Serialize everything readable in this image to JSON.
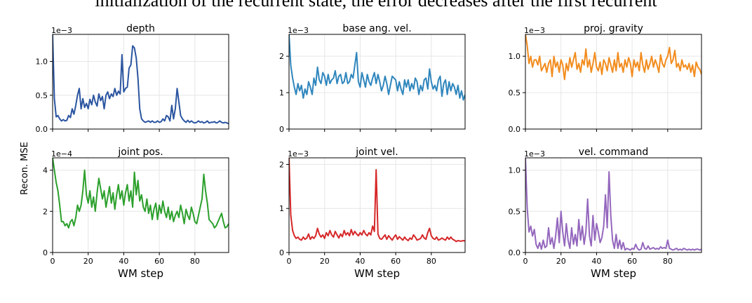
{
  "caption_fragment": "initialization of the recurrent state, the error decreases after the first recurrent",
  "shared": {
    "ylabel": "Recon. MSE",
    "xlabel": "WM step",
    "xlim": [
      0,
      99
    ],
    "xticks": [
      0,
      20,
      40,
      60,
      80
    ]
  },
  "chart_data": [
    {
      "type": "line",
      "title": "depth",
      "scale_label": "1e−3",
      "color": "#2b55a0",
      "ylim": [
        0,
        1.4
      ],
      "yticks": [
        0.0,
        0.5,
        1.0
      ],
      "ytick_labels": [
        "0.0",
        "0.5",
        "1.0"
      ],
      "xlabel": "",
      "show_xticklabels": false,
      "x": [
        0,
        1,
        2,
        3,
        4,
        5,
        6,
        7,
        8,
        9,
        10,
        11,
        12,
        13,
        14,
        15,
        16,
        17,
        18,
        19,
        20,
        21,
        22,
        23,
        24,
        25,
        26,
        27,
        28,
        29,
        30,
        31,
        32,
        33,
        34,
        35,
        36,
        37,
        38,
        39,
        40,
        41,
        42,
        43,
        44,
        45,
        46,
        47,
        48,
        49,
        50,
        51,
        52,
        53,
        54,
        55,
        56,
        57,
        58,
        59,
        60,
        61,
        62,
        63,
        64,
        65,
        66,
        67,
        68,
        69,
        70,
        71,
        72,
        73,
        74,
        75,
        76,
        77,
        78,
        79,
        80,
        81,
        82,
        83,
        84,
        85,
        86,
        87,
        88,
        89,
        90,
        91,
        92,
        93,
        94,
        95,
        96,
        97,
        98,
        99
      ],
      "values": [
        1.4,
        0.45,
        0.18,
        0.2,
        0.15,
        0.12,
        0.14,
        0.12,
        0.13,
        0.2,
        0.17,
        0.3,
        0.22,
        0.35,
        0.5,
        0.6,
        0.3,
        0.45,
        0.32,
        0.38,
        0.3,
        0.44,
        0.36,
        0.5,
        0.4,
        0.34,
        0.52,
        0.42,
        0.48,
        0.3,
        0.5,
        0.55,
        0.45,
        0.52,
        0.48,
        0.6,
        0.5,
        0.56,
        0.52,
        1.1,
        0.55,
        0.6,
        0.62,
        0.9,
        0.95,
        1.23,
        1.2,
        1.05,
        0.75,
        0.3,
        0.15,
        0.12,
        0.1,
        0.11,
        0.12,
        0.1,
        0.12,
        0.1,
        0.1,
        0.12,
        0.1,
        0.11,
        0.15,
        0.12,
        0.2,
        0.18,
        0.12,
        0.35,
        0.15,
        0.3,
        0.6,
        0.4,
        0.2,
        0.15,
        0.12,
        0.1,
        0.13,
        0.1,
        0.12,
        0.1,
        0.09,
        0.1,
        0.12,
        0.1,
        0.11,
        0.09,
        0.1,
        0.12,
        0.09,
        0.1,
        0.1,
        0.11,
        0.09,
        0.1,
        0.12,
        0.1,
        0.09,
        0.1,
        0.09,
        0.08
      ]
    },
    {
      "type": "line",
      "title": "base ang. vel.",
      "scale_label": "1e−3",
      "color": "#2f86bd",
      "ylim": [
        0,
        2.6
      ],
      "yticks": [
        0,
        1,
        2
      ],
      "ytick_labels": [
        "0",
        "1",
        "2"
      ],
      "xlabel": "",
      "show_xticklabels": false,
      "x": [
        0,
        1,
        2,
        3,
        4,
        5,
        6,
        7,
        8,
        9,
        10,
        11,
        12,
        13,
        14,
        15,
        16,
        17,
        18,
        19,
        20,
        21,
        22,
        23,
        24,
        25,
        26,
        27,
        28,
        29,
        30,
        31,
        32,
        33,
        34,
        35,
        36,
        37,
        38,
        39,
        40,
        41,
        42,
        43,
        44,
        45,
        46,
        47,
        48,
        49,
        50,
        51,
        52,
        53,
        54,
        55,
        56,
        57,
        58,
        59,
        60,
        61,
        62,
        63,
        64,
        65,
        66,
        67,
        68,
        69,
        70,
        71,
        72,
        73,
        74,
        75,
        76,
        77,
        78,
        79,
        80,
        81,
        82,
        83,
        84,
        85,
        86,
        87,
        88,
        89,
        90,
        91,
        92,
        93,
        94,
        95,
        96,
        97,
        98,
        99
      ],
      "values": [
        2.6,
        1.75,
        1.4,
        1.15,
        0.95,
        1.25,
        1.05,
        1.2,
        0.85,
        1.1,
        0.95,
        1.3,
        1.15,
        0.95,
        1.4,
        1.2,
        1.7,
        1.35,
        1.25,
        1.55,
        1.45,
        1.2,
        1.5,
        1.25,
        1.35,
        1.4,
        1.6,
        1.25,
        1.45,
        1.5,
        1.25,
        1.3,
        1.55,
        1.25,
        1.3,
        1.5,
        1.4,
        1.75,
        2.1,
        1.3,
        1.15,
        1.55,
        1.35,
        1.15,
        1.5,
        1.3,
        1.2,
        1.4,
        1.55,
        1.25,
        1.5,
        1.3,
        1.05,
        1.2,
        1.45,
        1.25,
        0.95,
        1.2,
        1.45,
        1.4,
        1.35,
        1.05,
        1.3,
        1.1,
        0.95,
        1.35,
        1.15,
        1.35,
        1.05,
        1.25,
        1.1,
        1.4,
        1.3,
        0.95,
        1.2,
        1.05,
        1.35,
        1.4,
        1.1,
        1.65,
        1.3,
        1.1,
        1.2,
        1.05,
        1.35,
        1.45,
        0.9,
        1.25,
        1.35,
        0.95,
        1.3,
        1.05,
        1.25,
        1.15,
        0.95,
        1.2,
        0.85,
        1.05,
        0.8,
        0.95
      ]
    },
    {
      "type": "line",
      "title": "proj. gravity",
      "scale_label": "1e−3",
      "color": "#f28c1e",
      "ylim": [
        0,
        1.3
      ],
      "yticks": [
        0.0,
        0.5,
        1.0
      ],
      "ytick_labels": [
        "0.0",
        "0.5",
        "1.0"
      ],
      "xlabel": "",
      "show_xticklabels": false,
      "x": [
        0,
        1,
        2,
        3,
        4,
        5,
        6,
        7,
        8,
        9,
        10,
        11,
        12,
        13,
        14,
        15,
        16,
        17,
        18,
        19,
        20,
        21,
        22,
        23,
        24,
        25,
        26,
        27,
        28,
        29,
        30,
        31,
        32,
        33,
        34,
        35,
        36,
        37,
        38,
        39,
        40,
        41,
        42,
        43,
        44,
        45,
        46,
        47,
        48,
        49,
        50,
        51,
        52,
        53,
        54,
        55,
        56,
        57,
        58,
        59,
        60,
        61,
        62,
        63,
        64,
        65,
        66,
        67,
        68,
        69,
        70,
        71,
        72,
        73,
        74,
        75,
        76,
        77,
        78,
        79,
        80,
        81,
        82,
        83,
        84,
        85,
        86,
        87,
        88,
        89,
        90,
        91,
        92,
        93,
        94,
        95,
        96,
        97,
        98,
        99
      ],
      "values": [
        1.3,
        1.15,
        0.9,
        1.0,
        0.85,
        0.95,
        0.95,
        0.88,
        1.0,
        0.8,
        0.85,
        0.9,
        0.78,
        0.9,
        0.95,
        0.72,
        1.0,
        0.85,
        0.92,
        0.78,
        0.95,
        0.88,
        0.68,
        0.9,
        0.8,
        0.98,
        0.85,
        0.95,
        1.05,
        0.82,
        0.9,
        0.78,
        0.95,
        0.88,
        1.1,
        0.85,
        0.95,
        0.78,
        0.9,
        1.05,
        0.85,
        0.8,
        0.92,
        0.75,
        0.95,
        0.9,
        0.8,
        0.98,
        0.88,
        0.78,
        0.95,
        0.8,
        1.05,
        0.85,
        0.9,
        0.78,
        0.95,
        0.85,
        0.98,
        0.9,
        0.72,
        0.95,
        0.85,
        0.92,
        0.8,
        1.05,
        0.88,
        0.78,
        0.95,
        0.82,
        0.9,
        1.0,
        0.85,
        0.95,
        0.88,
        0.78,
        1.02,
        0.9,
        0.85,
        0.95,
        1.0,
        1.12,
        0.9,
        0.95,
        1.08,
        0.85,
        0.9,
        0.8,
        0.95,
        0.85,
        0.88,
        0.82,
        0.9,
        0.78,
        0.88,
        0.72,
        0.92,
        0.85,
        0.82,
        0.75
      ]
    },
    {
      "type": "line",
      "title": "joint pos.",
      "scale_label": "1e−4",
      "color": "#2ca02c",
      "ylim": [
        0,
        4.6
      ],
      "yticks": [
        0,
        2,
        4
      ],
      "ytick_labels": [
        "0",
        "2",
        "4"
      ],
      "xlabel": "WM step",
      "show_xticklabels": true,
      "x": [
        0,
        1,
        2,
        3,
        4,
        5,
        6,
        7,
        8,
        9,
        10,
        11,
        12,
        13,
        14,
        15,
        16,
        17,
        18,
        19,
        20,
        21,
        22,
        23,
        24,
        25,
        26,
        27,
        28,
        29,
        30,
        31,
        32,
        33,
        34,
        35,
        36,
        37,
        38,
        39,
        40,
        41,
        42,
        43,
        44,
        45,
        46,
        47,
        48,
        49,
        50,
        51,
        52,
        53,
        54,
        55,
        56,
        57,
        58,
        59,
        60,
        61,
        62,
        63,
        64,
        65,
        66,
        67,
        68,
        69,
        70,
        71,
        72,
        73,
        74,
        75,
        76,
        77,
        78,
        79,
        80,
        81,
        82,
        83,
        84,
        85,
        86,
        87,
        88,
        89,
        90,
        91,
        92,
        93,
        94,
        95,
        96,
        97,
        98,
        99
      ],
      "values": [
        4.6,
        4.0,
        3.4,
        3.0,
        2.3,
        1.5,
        1.5,
        1.3,
        1.4,
        1.2,
        1.5,
        1.6,
        1.3,
        1.7,
        2.3,
        2.0,
        2.3,
        3.0,
        4.0,
        2.8,
        2.4,
        3.0,
        2.2,
        2.7,
        2.0,
        2.9,
        3.6,
        3.1,
        2.6,
        3.0,
        2.2,
        2.7,
        3.2,
        2.4,
        2.9,
        2.1,
        2.8,
        3.3,
        2.6,
        3.0,
        2.3,
        2.9,
        3.3,
        2.5,
        3.0,
        2.2,
        3.9,
        2.8,
        3.5,
        2.5,
        2.8,
        2.2,
        2.0,
        2.6,
        1.9,
        2.3,
        1.6,
        2.1,
        2.4,
        1.6,
        2.3,
        1.9,
        2.5,
        2.0,
        1.7,
        2.2,
        1.6,
        2.0,
        1.5,
        1.8,
        2.0,
        1.7,
        2.3,
        1.9,
        1.4,
        2.1,
        1.8,
        1.6,
        2.2,
        1.9,
        1.5,
        1.4,
        1.8,
        2.2,
        2.6,
        3.8,
        3.0,
        2.4,
        1.6,
        1.5,
        1.4,
        1.2,
        1.3,
        1.5,
        1.7,
        1.9,
        1.5,
        1.2,
        1.25,
        1.4
      ]
    },
    {
      "type": "line",
      "title": "joint vel.",
      "scale_label": "1e−3",
      "color": "#d62728",
      "ylim": [
        0,
        2.15
      ],
      "yticks": [
        0,
        1,
        2
      ],
      "ytick_labels": [
        "0",
        "1",
        "2"
      ],
      "xlabel": "WM step",
      "show_xticklabels": true,
      "x": [
        0,
        1,
        2,
        3,
        4,
        5,
        6,
        7,
        8,
        9,
        10,
        11,
        12,
        13,
        14,
        15,
        16,
        17,
        18,
        19,
        20,
        21,
        22,
        23,
        24,
        25,
        26,
        27,
        28,
        29,
        30,
        31,
        32,
        33,
        34,
        35,
        36,
        37,
        38,
        39,
        40,
        41,
        42,
        43,
        44,
        45,
        46,
        47,
        48,
        49,
        50,
        51,
        52,
        53,
        54,
        55,
        56,
        57,
        58,
        59,
        60,
        61,
        62,
        63,
        64,
        65,
        66,
        67,
        68,
        69,
        70,
        71,
        72,
        73,
        74,
        75,
        76,
        77,
        78,
        79,
        80,
        81,
        82,
        83,
        84,
        85,
        86,
        87,
        88,
        89,
        90,
        91,
        92,
        93,
        94,
        95,
        96,
        97,
        98,
        99
      ],
      "values": [
        2.15,
        0.85,
        0.5,
        0.38,
        0.32,
        0.35,
        0.3,
        0.28,
        0.35,
        0.3,
        0.33,
        0.42,
        0.3,
        0.36,
        0.32,
        0.38,
        0.55,
        0.42,
        0.35,
        0.4,
        0.32,
        0.45,
        0.38,
        0.5,
        0.4,
        0.35,
        0.48,
        0.4,
        0.33,
        0.42,
        0.36,
        0.5,
        0.4,
        0.45,
        0.38,
        0.52,
        0.4,
        0.48,
        0.42,
        0.38,
        0.45,
        0.4,
        0.5,
        0.42,
        0.38,
        0.45,
        0.4,
        0.6,
        0.48,
        1.88,
        0.42,
        0.32,
        0.3,
        0.35,
        0.4,
        0.3,
        0.38,
        0.33,
        0.28,
        0.35,
        0.4,
        0.3,
        0.36,
        0.32,
        0.28,
        0.35,
        0.3,
        0.27,
        0.33,
        0.3,
        0.4,
        0.35,
        0.28,
        0.3,
        0.32,
        0.4,
        0.33,
        0.3,
        0.45,
        0.55,
        0.38,
        0.32,
        0.3,
        0.35,
        0.28,
        0.3,
        0.33,
        0.3,
        0.28,
        0.35,
        0.3,
        0.35,
        0.3,
        0.28,
        0.25,
        0.27,
        0.26,
        0.26,
        0.27,
        0.26
      ]
    },
    {
      "type": "line",
      "title": "vel. command",
      "scale_label": "1e−3",
      "color": "#9467bd",
      "ylim": [
        0,
        1.15
      ],
      "yticks": [
        0.0,
        0.5,
        1.0
      ],
      "ytick_labels": [
        "0.0",
        "0.5",
        "1.0"
      ],
      "xlabel": "WM step",
      "show_xticklabels": true,
      "x": [
        0,
        1,
        2,
        3,
        4,
        5,
        6,
        7,
        8,
        9,
        10,
        11,
        12,
        13,
        14,
        15,
        16,
        17,
        18,
        19,
        20,
        21,
        22,
        23,
        24,
        25,
        26,
        27,
        28,
        29,
        30,
        31,
        32,
        33,
        34,
        35,
        36,
        37,
        38,
        39,
        40,
        41,
        42,
        43,
        44,
        45,
        46,
        47,
        48,
        49,
        50,
        51,
        52,
        53,
        54,
        55,
        56,
        57,
        58,
        59,
        60,
        61,
        62,
        63,
        64,
        65,
        66,
        67,
        68,
        69,
        70,
        71,
        72,
        73,
        74,
        75,
        76,
        77,
        78,
        79,
        80,
        81,
        82,
        83,
        84,
        85,
        86,
        87,
        88,
        89,
        90,
        91,
        92,
        93,
        94,
        95,
        96,
        97,
        98,
        99
      ],
      "values": [
        1.15,
        0.55,
        0.25,
        0.32,
        0.2,
        0.28,
        0.1,
        0.05,
        0.12,
        0.04,
        0.15,
        0.06,
        0.08,
        0.3,
        0.1,
        0.18,
        0.05,
        0.2,
        0.42,
        0.12,
        0.5,
        0.25,
        0.08,
        0.35,
        0.15,
        0.05,
        0.3,
        0.1,
        0.22,
        0.08,
        0.4,
        0.15,
        0.32,
        0.1,
        0.25,
        0.65,
        0.2,
        0.08,
        0.45,
        0.15,
        0.35,
        0.25,
        0.12,
        0.18,
        0.32,
        0.7,
        0.3,
        0.98,
        0.45,
        0.15,
        0.05,
        0.22,
        0.05,
        0.15,
        0.04,
        0.12,
        0.03,
        0.05,
        0.04,
        0.03,
        0.05,
        0.04,
        0.1,
        0.05,
        0.03,
        0.04,
        0.12,
        0.05,
        0.04,
        0.08,
        0.04,
        0.05,
        0.06,
        0.04,
        0.05,
        0.04,
        0.07,
        0.05,
        0.06,
        0.05,
        0.15,
        0.05,
        0.04,
        0.03,
        0.04,
        0.05,
        0.03,
        0.04,
        0.03,
        0.05,
        0.04,
        0.03,
        0.04,
        0.03,
        0.04,
        0.03,
        0.04,
        0.04,
        0.03,
        0.04
      ]
    }
  ]
}
